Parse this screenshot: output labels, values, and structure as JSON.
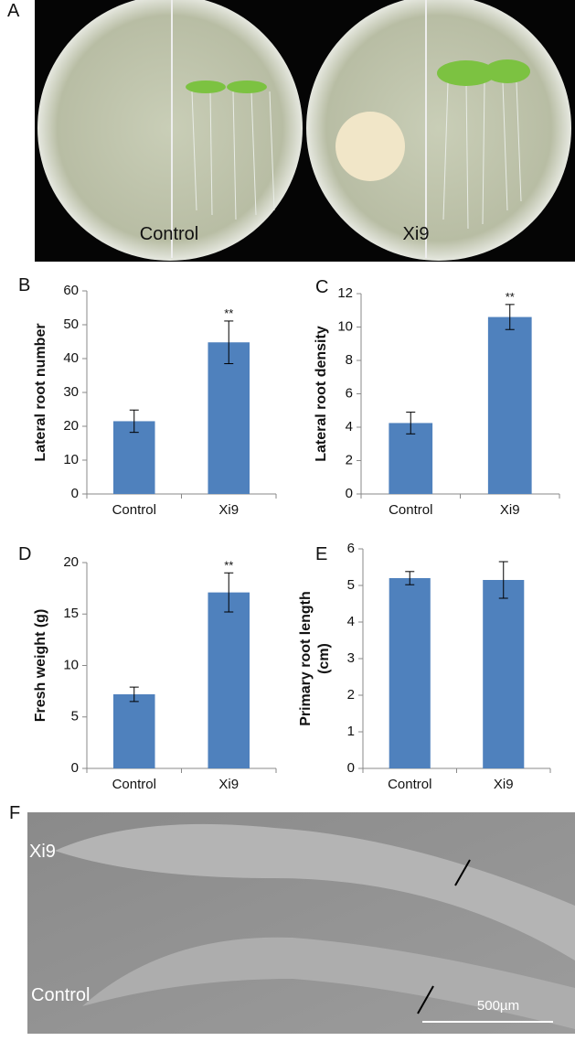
{
  "figure": {
    "panel_labels": [
      "A",
      "F"
    ],
    "plate_labels": [
      "Control",
      "Xi9"
    ],
    "micro_labels": [
      "Xi9",
      "Control"
    ],
    "scale_bar": "500µm"
  },
  "chart_data": [
    {
      "type": "bar",
      "panel": "B",
      "ylabel": [
        "Lateral root number"
      ],
      "categories": [
        "Control",
        "Xi9"
      ],
      "values": [
        21.5,
        44.8
      ],
      "errors": [
        3.3,
        6.3
      ],
      "significance": [
        null,
        "**"
      ],
      "color": "#4f81bd",
      "ylim": [
        0,
        60
      ],
      "yticks": [
        0,
        10,
        20,
        30,
        40,
        50,
        60
      ]
    },
    {
      "type": "bar",
      "panel": "C",
      "ylabel": [
        "Lateral root density"
      ],
      "categories": [
        "Control",
        "Xi9"
      ],
      "values": [
        4.25,
        10.6
      ],
      "errors": [
        0.65,
        0.75
      ],
      "significance": [
        null,
        "**"
      ],
      "color": "#4f81bd",
      "ylim": [
        0,
        12
      ],
      "yticks": [
        0,
        2,
        4,
        6,
        8,
        10,
        12
      ]
    },
    {
      "type": "bar",
      "panel": "D",
      "ylabel": [
        "Fresh weight  (g)"
      ],
      "categories": [
        "Control",
        "Xi9"
      ],
      "values": [
        7.2,
        17.1
      ],
      "errors": [
        0.7,
        1.9
      ],
      "significance": [
        null,
        "**"
      ],
      "color": "#4f81bd",
      "ylim": [
        0,
        20
      ],
      "yticks": [
        0,
        5,
        10,
        15,
        20
      ]
    },
    {
      "type": "bar",
      "panel": "E",
      "ylabel": [
        "Primary root length",
        "(cm)"
      ],
      "categories": [
        "Control",
        "Xi9"
      ],
      "values": [
        5.2,
        5.15
      ],
      "errors": [
        0.18,
        0.5
      ],
      "significance": [
        null,
        null
      ],
      "color": "#4f81bd",
      "ylim": [
        0,
        6
      ],
      "yticks": [
        0,
        1,
        2,
        3,
        4,
        5,
        6
      ]
    }
  ]
}
